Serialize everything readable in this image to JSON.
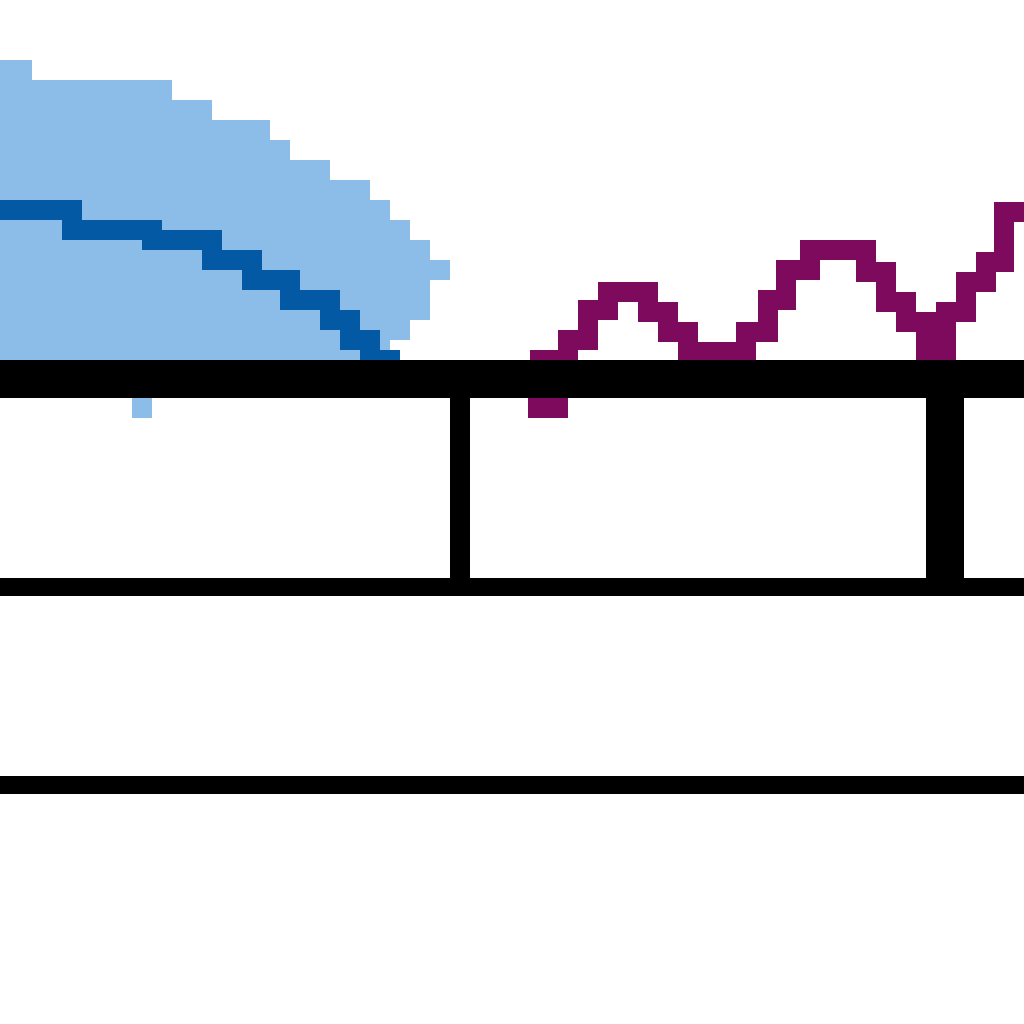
{
  "colors": {
    "background": "#ffffff",
    "area_fill": "#8bbde8",
    "blue_line": "#0359a4",
    "purple_line": "#7d0a5c",
    "grid": "#000000"
  },
  "icons": {
    "left_sprite": "area-and-line-icon",
    "right_sprite": "wave-line-icon"
  }
}
